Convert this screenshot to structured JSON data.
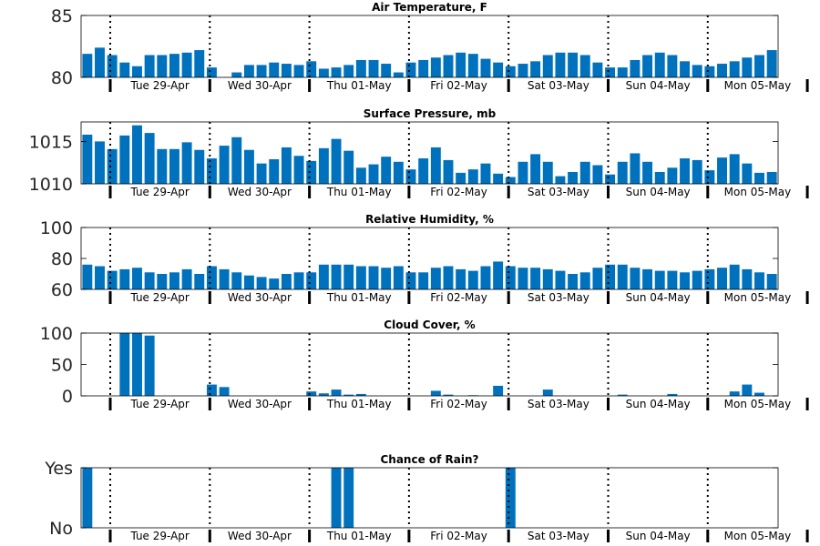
{
  "colors": {
    "bar": "#0072BD",
    "axis": "#000000",
    "tick_text": "#262626"
  },
  "days": [
    "Tue 29-Apr",
    "Wed 30-Apr",
    "Thu 01-May",
    "Fri 02-May",
    "Sat 03-May",
    "Sun 04-May",
    "Mon 05-May"
  ],
  "chart_data": [
    {
      "type": "bar",
      "title": "Air Temperature, F",
      "ylim": [
        80,
        85
      ],
      "yticks": [
        {
          "v": 80,
          "label": "80"
        },
        {
          "v": 85,
          "label": "85"
        }
      ],
      "values": [
        81.9,
        82.4,
        81.8,
        81.2,
        80.9,
        81.8,
        81.8,
        81.9,
        82.0,
        82.2,
        80.8,
        80.0,
        80.4,
        81.0,
        81.0,
        81.2,
        81.1,
        81.0,
        81.3,
        80.7,
        80.8,
        81.0,
        81.4,
        81.4,
        81.1,
        80.4,
        81.2,
        81.4,
        81.6,
        81.8,
        82.0,
        81.9,
        81.5,
        81.2,
        80.9,
        81.1,
        81.3,
        81.8,
        82.0,
        82.0,
        81.8,
        81.2,
        80.8,
        80.8,
        81.4,
        81.8,
        82.0,
        81.8,
        81.3,
        81.0,
        80.9,
        81.1,
        81.3,
        81.6,
        81.8,
        82.2
      ]
    },
    {
      "type": "bar",
      "title": "Surface Pressure, mb",
      "ylim": [
        1010,
        1017.3
      ],
      "yticks": [
        {
          "v": 1010,
          "label": "1010"
        },
        {
          "v": 1015,
          "label": "1015"
        }
      ],
      "values": [
        1015.8,
        1015.0,
        1014.1,
        1015.7,
        1016.9,
        1016.0,
        1014.1,
        1014.1,
        1014.9,
        1014.0,
        1013.0,
        1014.5,
        1015.5,
        1014.0,
        1012.4,
        1012.9,
        1014.3,
        1013.3,
        1012.7,
        1014.2,
        1015.3,
        1013.9,
        1011.9,
        1012.3,
        1013.2,
        1012.6,
        1011.7,
        1013.0,
        1014.3,
        1012.8,
        1011.3,
        1011.7,
        1012.4,
        1011.2,
        1010.8,
        1012.6,
        1013.5,
        1012.6,
        1010.9,
        1011.4,
        1012.6,
        1012.2,
        1011.1,
        1012.6,
        1013.6,
        1012.6,
        1011.4,
        1011.9,
        1013.0,
        1012.8,
        1011.6,
        1013.1,
        1013.5,
        1012.4,
        1011.3,
        1011.4
      ]
    },
    {
      "type": "bar",
      "title": "Relative Humidity, %",
      "ylim": [
        60,
        100
      ],
      "yticks": [
        {
          "v": 60,
          "label": "60"
        },
        {
          "v": 80,
          "label": "80"
        },
        {
          "v": 100,
          "label": "100"
        }
      ],
      "values": [
        76,
        75,
        72,
        73,
        74,
        71,
        70,
        71,
        73,
        70,
        75,
        73,
        71,
        69,
        68,
        67,
        70,
        71,
        71,
        76,
        76,
        76,
        75,
        75,
        74,
        75,
        71,
        71,
        74,
        75,
        73,
        72,
        75,
        78,
        75,
        74,
        74,
        73,
        72,
        70,
        71,
        74,
        76,
        76,
        74,
        73,
        72,
        72,
        71,
        72,
        73,
        74,
        76,
        73,
        71,
        70
      ]
    },
    {
      "type": "bar",
      "title": "Cloud Cover, %",
      "ylim": [
        0,
        100
      ],
      "yticks": [
        {
          "v": 0,
          "label": "0"
        },
        {
          "v": 50,
          "label": "50"
        },
        {
          "v": 100,
          "label": "100"
        }
      ],
      "values": [
        0,
        0,
        0,
        100,
        100,
        96,
        0,
        0,
        0,
        0,
        18,
        14,
        0,
        0,
        0,
        0,
        0,
        0,
        7,
        4,
        10,
        2,
        3,
        0,
        0,
        0,
        0,
        0,
        8,
        2,
        0,
        1,
        0,
        16,
        0,
        0,
        0,
        10,
        0,
        0,
        0,
        0,
        0,
        2,
        0,
        0,
        0,
        3,
        0,
        0,
        0,
        0,
        7,
        18,
        5,
        0
      ]
    },
    {
      "type": "bar",
      "title": "Chance of Rain?",
      "ylim": [
        0,
        1
      ],
      "yticks": [
        {
          "v": 0,
          "label": "No"
        },
        {
          "v": 1,
          "label": "Yes"
        }
      ],
      "values": [
        1,
        0,
        0,
        0,
        0,
        0,
        0,
        0,
        0,
        0,
        0,
        0,
        0,
        0,
        0,
        0,
        0,
        0,
        0,
        0,
        1,
        1,
        0,
        0,
        0,
        0,
        0,
        0,
        0,
        0,
        0,
        0,
        0,
        0,
        1,
        0,
        0,
        0,
        0,
        0,
        0,
        0,
        0,
        0,
        0,
        0,
        0,
        0,
        0,
        0,
        0,
        0,
        0,
        0,
        0,
        0
      ]
    }
  ]
}
